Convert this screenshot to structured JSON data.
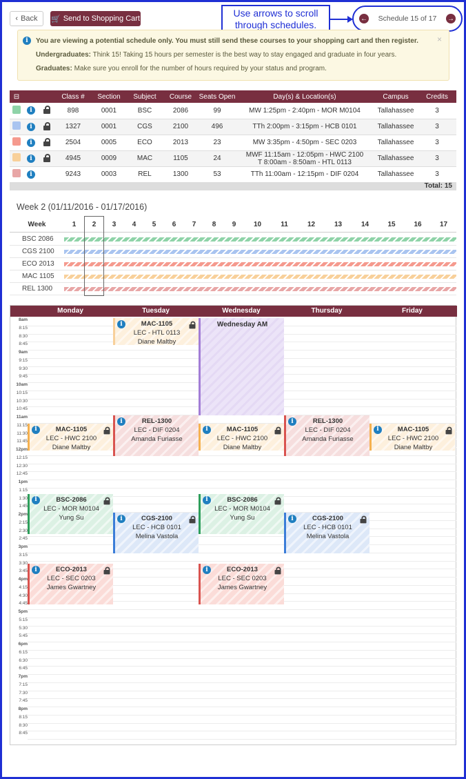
{
  "toolbar": {
    "back_label": "Back",
    "cart_label": "Send to Shopping Cart"
  },
  "callout": {
    "text": "Use arrows to scroll through schedules."
  },
  "schedule_nav": {
    "label": "Schedule 15 of 17"
  },
  "notice": {
    "line1": "You are viewing a potential schedule only. You must still send these courses to your shopping cart and then register.",
    "under_label": "Undergraduates:",
    "under_text": " Think 15! Taking 15 hours per semester is the best way to stay engaged and graduate in four years.",
    "grad_label": "Graduates:",
    "grad_text": " Make sure you enroll for the number of hours required by your status and program."
  },
  "table": {
    "headers": [
      "Class #",
      "Section",
      "Subject",
      "Course",
      "Seats Open",
      "Day(s) & Location(s)",
      "Campus",
      "Credits"
    ],
    "rows": [
      {
        "color": "#8fd3a8",
        "locked": true,
        "class": "898",
        "section": "0001",
        "subject": "BSC",
        "course": "2086",
        "seats": "99",
        "days": "MW 1:25pm - 2:40pm - MOR M0104",
        "campus": "Tallahassee",
        "credits": "3"
      },
      {
        "color": "#a9c4f0",
        "locked": true,
        "class": "1327",
        "section": "0001",
        "subject": "CGS",
        "course": "2100",
        "seats": "496",
        "days": "TTh 2:00pm - 3:15pm - HCB 0101",
        "campus": "Tallahassee",
        "credits": "3"
      },
      {
        "color": "#f59a8e",
        "locked": true,
        "class": "2504",
        "section": "0005",
        "subject": "ECO",
        "course": "2013",
        "seats": "23",
        "days": "MW 3:35pm - 4:50pm - SEC 0203",
        "campus": "Tallahassee",
        "credits": "3"
      },
      {
        "color": "#f8d09a",
        "locked": true,
        "class": "4945",
        "section": "0009",
        "subject": "MAC",
        "course": "1105",
        "seats": "24",
        "days": "MWF 11:15am - 12:05pm - HWC 2100",
        "days2": "T 8:00am - 8:50am - HTL 0113",
        "campus": "Tallahassee",
        "credits": "3"
      },
      {
        "color": "#e8a6a6",
        "locked": false,
        "class": "9243",
        "section": "0003",
        "subject": "REL",
        "course": "1300",
        "seats": "53",
        "days": "TTh 11:00am - 12:15pm - DIF 0204",
        "campus": "Tallahassee",
        "credits": "3"
      }
    ],
    "total": "Total: 15"
  },
  "weeks": {
    "title": "Week 2 (01/11/2016 - 01/17/2016)",
    "header": "Week",
    "numbers": [
      "1",
      "2",
      "3",
      "4",
      "5",
      "6",
      "7",
      "8",
      "9",
      "10",
      "11",
      "12",
      "13",
      "14",
      "15",
      "16",
      "17"
    ],
    "courses": [
      {
        "label": "BSC 2086",
        "color": "#8fd3a8"
      },
      {
        "label": "CGS 2100",
        "color": "#a9c4f0"
      },
      {
        "label": "ECO 2013",
        "color": "#f59a8e"
      },
      {
        "label": "MAC 1105",
        "color": "#f8d09a"
      },
      {
        "label": "REL 1300",
        "color": "#e8a6a6"
      }
    ]
  },
  "calendar": {
    "days": [
      "Monday",
      "Tuesday",
      "Wednesday",
      "Thursday",
      "Friday"
    ],
    "times": [
      "8am",
      "8:15",
      "8:30",
      "8:45",
      "9am",
      "9:15",
      "9:30",
      "9:45",
      "10am",
      "10:15",
      "10:30",
      "10:45",
      "11am",
      "11:15",
      "11:30",
      "11:45",
      "12pm",
      "12:15",
      "12:30",
      "12:45",
      "1pm",
      "1:15",
      "1:30",
      "1:45",
      "2pm",
      "2:15",
      "2:30",
      "2:45",
      "3pm",
      "3:15",
      "3:30",
      "3:45",
      "4pm",
      "4:15",
      "4:30",
      "4:45",
      "5pm",
      "5:15",
      "5:30",
      "5:45",
      "6pm",
      "6:15",
      "6:30",
      "6:45",
      "7pm",
      "7:15",
      "7:30",
      "7:45",
      "8pm",
      "8:15",
      "8:30",
      "8:45"
    ],
    "wednesday_am": "Wednesday AM",
    "events": [
      {
        "day": 1,
        "start": "8:00",
        "end": "8:50",
        "title": "MAC-1105",
        "line2": "LEC - HTL 0113",
        "line3": "Diane Maltby",
        "color": "#f8d09a",
        "bg": "#fdf0dd",
        "lock": true
      },
      {
        "day": 0,
        "start": "11:15",
        "end": "12:05",
        "title": "MAC-1105",
        "line2": "LEC - HWC 2100",
        "line3": "Diane Maltby",
        "color": "#f5b14f",
        "bg": "#fdf0dd",
        "lock": true
      },
      {
        "day": 2,
        "start": "11:15",
        "end": "12:05",
        "title": "MAC-1105",
        "line2": "LEC - HWC 2100",
        "line3": "Diane Maltby",
        "color": "#f5b14f",
        "bg": "#fdf0dd",
        "lock": true
      },
      {
        "day": 4,
        "start": "11:15",
        "end": "12:05",
        "title": "MAC-1105",
        "line2": "LEC - HWC 2100",
        "line3": "Diane Maltby",
        "color": "#f5b14f",
        "bg": "#fdf0dd",
        "lock": true
      },
      {
        "day": 1,
        "start": "11:00",
        "end": "12:15",
        "title": "REL-1300",
        "line2": "LEC - DIF 0204",
        "line3": "Amanda Furiasse",
        "color": "#d9534f",
        "bg": "#f6dede",
        "lock": false
      },
      {
        "day": 3,
        "start": "11:00",
        "end": "12:15",
        "title": "REL-1300",
        "line2": "LEC - DIF 0204",
        "line3": "Amanda Furiasse",
        "color": "#d9534f",
        "bg": "#f6dede",
        "lock": false
      },
      {
        "day": 0,
        "start": "13:25",
        "end": "14:40",
        "title": "BSC-2086",
        "line2": "LEC - MOR M0104",
        "line3": "Yung Su",
        "color": "#2e9e5b",
        "bg": "#dcf1e4",
        "lock": true
      },
      {
        "day": 2,
        "start": "13:25",
        "end": "14:40",
        "title": "BSC-2086",
        "line2": "LEC - MOR M0104",
        "line3": "Yung Su",
        "color": "#2e9e5b",
        "bg": "#dcf1e4",
        "lock": true
      },
      {
        "day": 1,
        "start": "14:00",
        "end": "15:15",
        "title": "CGS-2100",
        "line2": "LEC - HCB 0101",
        "line3": "Melina Vastola",
        "color": "#3b7dd8",
        "bg": "#dde8f8",
        "lock": true
      },
      {
        "day": 3,
        "start": "14:00",
        "end": "15:15",
        "title": "CGS-2100",
        "line2": "LEC - HCB 0101",
        "line3": "Melina Vastola",
        "color": "#3b7dd8",
        "bg": "#dde8f8",
        "lock": true
      },
      {
        "day": 0,
        "start": "15:35",
        "end": "16:50",
        "title": "ECO-2013",
        "line2": "LEC - SEC 0203",
        "line3": "James Gwartney",
        "color": "#d9534f",
        "bg": "#fbdcd8",
        "lock": true
      },
      {
        "day": 2,
        "start": "15:35",
        "end": "16:50",
        "title": "ECO-2013",
        "line2": "LEC - SEC 0203",
        "line3": "James Gwartney",
        "color": "#d9534f",
        "bg": "#fbdcd8",
        "lock": true
      }
    ]
  }
}
